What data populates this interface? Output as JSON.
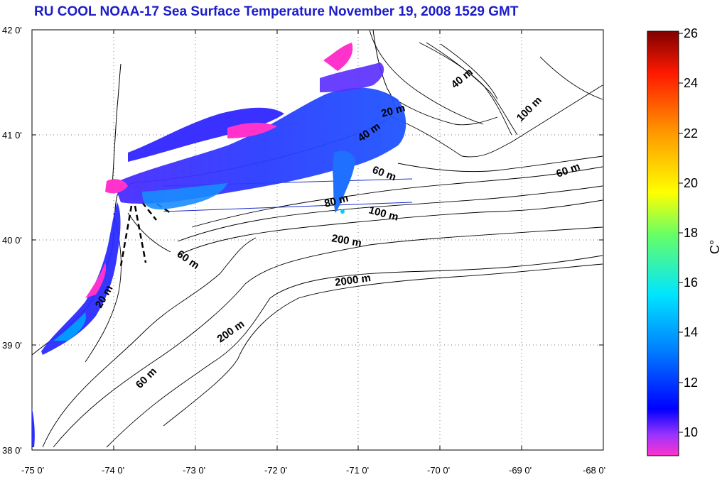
{
  "title": "RU COOL  NOAA-17 Sea Surface Temperature November 19, 2008 1529 GMT",
  "map": {
    "lon_ticks": [
      "-75 0'",
      "-74 0'",
      "-73 0'",
      "-72 0'",
      "-71 0'",
      "-70 0'",
      "-69 0'",
      "-68 0'"
    ],
    "lat_ticks": [
      "42 0'",
      "41 0'",
      "40 0'",
      "39 0'",
      "38 0'"
    ],
    "lon_range": [
      -75,
      -68
    ],
    "lat_range": [
      38,
      42
    ],
    "grid": "dotted",
    "contour_labels": [
      "40 m",
      "20 m",
      "40 m",
      "60 m",
      "100 m",
      "60 m",
      "80 m",
      "100 m",
      "200 m",
      "2000 m",
      "60 m",
      "200 m",
      "60 m",
      "20 m"
    ]
  },
  "colorbar": {
    "ticks": [
      "26",
      "24",
      "22",
      "20",
      "18",
      "16",
      "14",
      "12",
      "10"
    ],
    "unit_label": "C°",
    "range": [
      9,
      26
    ],
    "colors": [
      "#ff33cc",
      "#7a2bff",
      "#0000ff",
      "#0066ff",
      "#00ccff",
      "#33ff99",
      "#99ff33",
      "#ffff00",
      "#ff9900",
      "#ff2200",
      "#800000"
    ]
  },
  "colors": {
    "title": "#1c1cc8",
    "sst_cold": "#ff33cc",
    "sst_mid": "#3333ff",
    "sst_warm": "#0099ff"
  }
}
